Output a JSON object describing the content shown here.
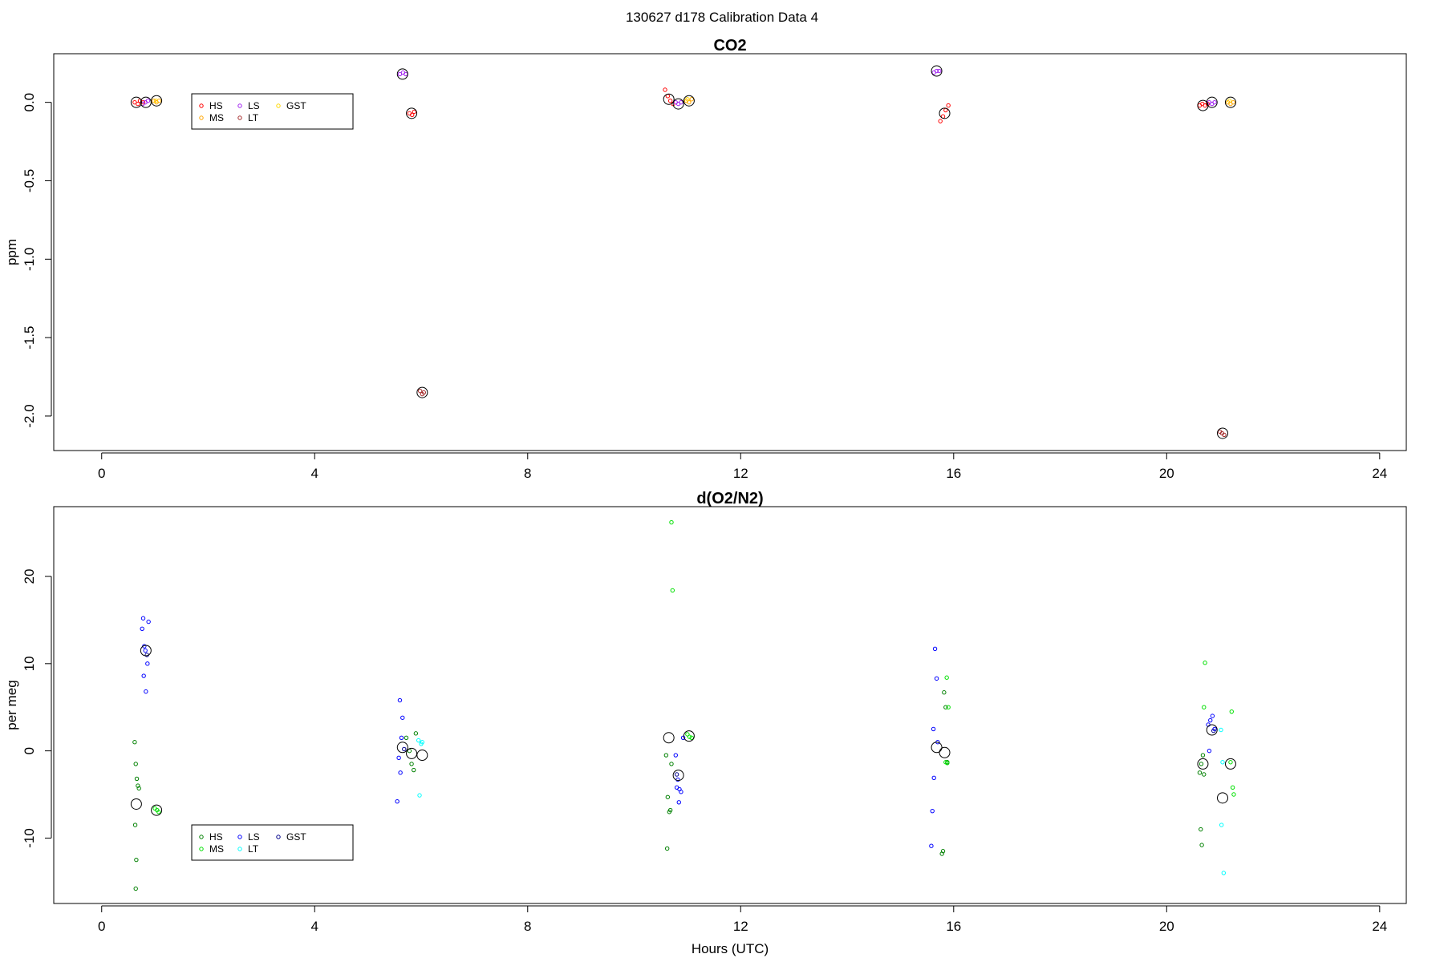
{
  "figure": {
    "suptitle": "130627   d178   Calibration Data 4"
  },
  "chart_data": [
    {
      "type": "scatter",
      "title": "CO2",
      "xlabel": "",
      "ylabel": "ppm",
      "xlim": [
        -0.9,
        24.5
      ],
      "ylim": [
        -2.22,
        0.31
      ],
      "xticks": [
        0,
        4,
        8,
        12,
        16,
        20,
        24
      ],
      "yticks": [
        0,
        -0.5,
        -1,
        -1.5,
        -2
      ],
      "ytick_labels": [
        "0.0",
        "-0.5",
        "-1.0",
        "-1.5",
        "-2.0"
      ],
      "legend": {
        "position": "top-left",
        "entries": [
          {
            "label": "HS",
            "color": "#ff0000"
          },
          {
            "label": "LS",
            "color": "#a020f0"
          },
          {
            "label": "GST",
            "color": "#ffd700"
          },
          {
            "label": "MS",
            "color": "#ffa500"
          },
          {
            "label": "LT",
            "color": "#a52a2a"
          }
        ]
      },
      "series": [
        {
          "name": "HS",
          "color": "#ff0000",
          "points": [
            [
              0.62,
              0.0
            ],
            [
              0.68,
              -0.01
            ],
            [
              0.72,
              0.01
            ],
            [
              0.78,
              0.0
            ],
            [
              5.78,
              -0.07
            ],
            [
              5.83,
              -0.08
            ],
            [
              5.87,
              -0.06
            ],
            [
              10.58,
              0.08
            ],
            [
              10.63,
              0.04
            ],
            [
              10.68,
              0.01
            ],
            [
              10.73,
              -0.01
            ],
            [
              15.75,
              -0.12
            ],
            [
              15.8,
              -0.09
            ],
            [
              15.85,
              -0.05
            ],
            [
              15.9,
              -0.02
            ],
            [
              20.62,
              -0.02
            ],
            [
              20.67,
              -0.01
            ],
            [
              20.72,
              -0.02
            ],
            [
              20.77,
              -0.01
            ]
          ]
        },
        {
          "name": "LS",
          "color": "#a020f0",
          "points": [
            [
              0.77,
              -0.01
            ],
            [
              0.82,
              0.0
            ],
            [
              0.87,
              0.01
            ],
            [
              5.6,
              0.18
            ],
            [
              5.66,
              0.19
            ],
            [
              5.71,
              0.18
            ],
            [
              10.78,
              0.0
            ],
            [
              10.83,
              -0.01
            ],
            [
              10.88,
              0.0
            ],
            [
              15.63,
              0.19
            ],
            [
              15.68,
              0.2
            ],
            [
              15.73,
              0.2
            ],
            [
              20.8,
              0.0
            ],
            [
              20.85,
              -0.01
            ],
            [
              20.9,
              0.0
            ]
          ]
        },
        {
          "name": "MS",
          "color": "#ffa500",
          "points": [
            [
              0.98,
              0.01
            ],
            [
              1.03,
              0.0
            ],
            [
              1.08,
              0.01
            ],
            [
              10.98,
              0.01
            ],
            [
              11.03,
              0.0
            ],
            [
              11.08,
              0.02
            ],
            [
              21.15,
              0.0
            ],
            [
              21.2,
              -0.01
            ],
            [
              21.25,
              0.0
            ]
          ]
        },
        {
          "name": "GST",
          "color": "#ffd700",
          "points": [
            [
              1.02,
              0.01
            ],
            [
              11.0,
              0.02
            ],
            [
              21.18,
              0.01
            ]
          ]
        },
        {
          "name": "LT",
          "color": "#a52a2a",
          "points": [
            [
              5.98,
              -1.84
            ],
            [
              6.02,
              -1.86
            ],
            [
              6.05,
              -1.85
            ],
            [
              21.0,
              -2.1
            ],
            [
              21.04,
              -2.11
            ],
            [
              21.08,
              -2.12
            ]
          ]
        }
      ],
      "means": [
        [
          0.65,
          0.0
        ],
        [
          0.83,
          0.0
        ],
        [
          1.03,
          0.01
        ],
        [
          5.65,
          0.18
        ],
        [
          5.82,
          -0.07
        ],
        [
          6.02,
          -1.85
        ],
        [
          10.65,
          0.02
        ],
        [
          10.83,
          -0.01
        ],
        [
          11.03,
          0.01
        ],
        [
          15.68,
          0.2
        ],
        [
          15.83,
          -0.07
        ],
        [
          20.68,
          -0.02
        ],
        [
          20.85,
          0.0
        ],
        [
          21.05,
          -2.11
        ],
        [
          21.2,
          0.0
        ]
      ]
    },
    {
      "type": "scatter",
      "title": "d(O2/N2)",
      "xlabel": "Hours (UTC)",
      "ylabel": "per meg",
      "xlim": [
        -0.9,
        24.5
      ],
      "ylim": [
        -17.5,
        28
      ],
      "xticks": [
        0,
        4,
        8,
        12,
        16,
        20,
        24
      ],
      "yticks": [
        20,
        10,
        0,
        -10
      ],
      "ytick_labels": [
        "20",
        "10",
        "0",
        "-10"
      ],
      "legend": {
        "position": "bottom-left",
        "entries": [
          {
            "label": "HS",
            "color": "#008000"
          },
          {
            "label": "LS",
            "color": "#0000ff"
          },
          {
            "label": "GST",
            "color": "#00008b"
          },
          {
            "label": "MS",
            "color": "#00e000"
          },
          {
            "label": "LT",
            "color": "#00ffff"
          }
        ]
      },
      "series": [
        {
          "name": "HS",
          "color": "#008000",
          "points": [
            [
              0.62,
              1.0
            ],
            [
              0.64,
              -1.5
            ],
            [
              0.66,
              -3.2
            ],
            [
              0.68,
              -4.0
            ],
            [
              0.7,
              -4.3
            ],
            [
              0.63,
              -8.5
            ],
            [
              0.65,
              -12.5
            ],
            [
              0.64,
              -15.8
            ],
            [
              5.72,
              1.5
            ],
            [
              5.78,
              0.0
            ],
            [
              5.82,
              -1.5
            ],
            [
              5.86,
              -2.2
            ],
            [
              5.9,
              2.0
            ],
            [
              10.6,
              -0.5
            ],
            [
              10.63,
              -5.3
            ],
            [
              10.66,
              -7.0
            ],
            [
              10.68,
              -6.8
            ],
            [
              10.62,
              -11.2
            ],
            [
              10.7,
              -1.5
            ],
            [
              15.82,
              6.7
            ],
            [
              15.85,
              5.0
            ],
            [
              15.8,
              -11.5
            ],
            [
              15.78,
              -11.8
            ],
            [
              15.88,
              -1.3
            ],
            [
              20.62,
              -2.5
            ],
            [
              20.65,
              -1.5
            ],
            [
              20.68,
              -0.5
            ],
            [
              20.64,
              -9.0
            ],
            [
              20.66,
              -10.8
            ],
            [
              20.7,
              -2.7
            ]
          ]
        },
        {
          "name": "MS",
          "color": "#00e000",
          "points": [
            [
              1.0,
              -6.6
            ],
            [
              1.04,
              -6.8
            ],
            [
              1.07,
              -7.0
            ],
            [
              10.7,
              26.2
            ],
            [
              10.72,
              18.4
            ],
            [
              11.0,
              1.9
            ],
            [
              11.04,
              1.6
            ],
            [
              11.08,
              1.5
            ],
            [
              15.87,
              8.4
            ],
            [
              15.9,
              5.0
            ],
            [
              15.85,
              -1.3
            ],
            [
              15.88,
              -1.4
            ],
            [
              20.72,
              10.1
            ],
            [
              20.7,
              5.0
            ],
            [
              21.22,
              4.5
            ],
            [
              21.24,
              -4.2
            ],
            [
              21.26,
              -5.0
            ],
            [
              21.2,
              -1.3
            ]
          ]
        },
        {
          "name": "LS",
          "color": "#0000ff",
          "points": [
            [
              0.78,
              15.2
            ],
            [
              0.76,
              14.0
            ],
            [
              0.88,
              14.8
            ],
            [
              0.8,
              12.0
            ],
            [
              0.82,
              11.5
            ],
            [
              0.86,
              10.0
            ],
            [
              0.79,
              8.6
            ],
            [
              0.83,
              6.8
            ],
            [
              5.6,
              5.8
            ],
            [
              5.65,
              3.8
            ],
            [
              5.63,
              1.5
            ],
            [
              5.58,
              -0.8
            ],
            [
              5.61,
              -2.5
            ],
            [
              5.55,
              -5.8
            ],
            [
              10.78,
              -0.5
            ],
            [
              10.82,
              -3.3
            ],
            [
              10.8,
              -4.2
            ],
            [
              10.85,
              -4.4
            ],
            [
              10.88,
              -4.7
            ],
            [
              10.92,
              1.5
            ],
            [
              10.84,
              -5.9
            ],
            [
              15.65,
              11.7
            ],
            [
              15.68,
              8.3
            ],
            [
              15.62,
              2.5
            ],
            [
              15.7,
              1.0
            ],
            [
              15.63,
              -3.1
            ],
            [
              15.6,
              -6.9
            ],
            [
              15.58,
              -10.9
            ],
            [
              20.78,
              3.0
            ],
            [
              20.82,
              3.5
            ],
            [
              20.86,
              4.0
            ],
            [
              20.9,
              2.5
            ],
            [
              20.8,
              0.0
            ]
          ]
        },
        {
          "name": "GST",
          "color": "#00008b",
          "points": [
            [
              0.85,
              11.0
            ],
            [
              5.68,
              0.2
            ],
            [
              10.8,
              -2.7
            ],
            [
              20.88,
              2.3
            ]
          ]
        },
        {
          "name": "LT",
          "color": "#00ffff",
          "points": [
            [
              5.95,
              1.2
            ],
            [
              6.0,
              0.8
            ],
            [
              6.02,
              1.0
            ],
            [
              5.97,
              -5.1
            ],
            [
              21.02,
              2.4
            ],
            [
              21.05,
              -1.3
            ],
            [
              21.03,
              -8.5
            ],
            [
              21.07,
              -14.0
            ]
          ]
        }
      ],
      "means": [
        [
          0.65,
          -6.1
        ],
        [
          0.83,
          11.5
        ],
        [
          1.03,
          -6.8
        ],
        [
          5.65,
          0.4
        ],
        [
          5.82,
          -0.3
        ],
        [
          6.02,
          -0.5
        ],
        [
          10.65,
          1.5
        ],
        [
          10.83,
          -2.8
        ],
        [
          11.03,
          1.7
        ],
        [
          15.68,
          0.4
        ],
        [
          15.83,
          -0.2
        ],
        [
          20.68,
          -1.5
        ],
        [
          20.85,
          2.4
        ],
        [
          21.05,
          -5.4
        ],
        [
          21.2,
          -1.5
        ]
      ]
    }
  ]
}
